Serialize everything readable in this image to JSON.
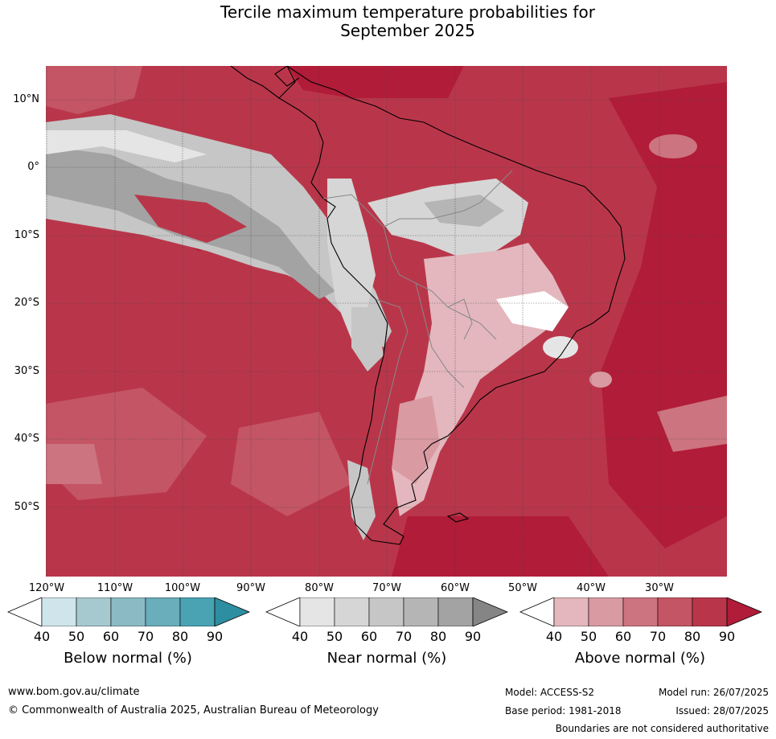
{
  "title_line1": "Tercile maximum temperature probabilities for",
  "title_line2": "September 2025",
  "lat_labels": [
    "10°N",
    "0°",
    "10°S",
    "20°S",
    "30°S",
    "40°S",
    "50°S"
  ],
  "lon_labels": [
    "120°W",
    "110°W",
    "100°W",
    "90°W",
    "80°W",
    "70°W",
    "60°W",
    "50°W",
    "40°W",
    "30°W"
  ],
  "colorbars": [
    {
      "title": "Below normal (%)",
      "ticks": [
        "40",
        "50",
        "60",
        "70",
        "80",
        "90"
      ],
      "colors": [
        "#ffffff",
        "#cfe5eb",
        "#a6c9d0",
        "#8bbac4",
        "#6aadbb",
        "#49a3b3",
        "#2e8ea1"
      ]
    },
    {
      "title": "Near normal (%)",
      "ticks": [
        "40",
        "50",
        "60",
        "70",
        "80",
        "90"
      ],
      "colors": [
        "#ffffff",
        "#e5e5e5",
        "#d6d6d6",
        "#c6c6c6",
        "#b5b5b5",
        "#a3a3a3",
        "#858585"
      ]
    },
    {
      "title": "Above normal (%)",
      "ticks": [
        "40",
        "50",
        "60",
        "70",
        "80",
        "90"
      ],
      "colors": [
        "#ffffff",
        "#e3b7bd",
        "#d99aa2",
        "#cc7480",
        "#c45564",
        "#b9364a",
        "#b11c38"
      ]
    }
  ],
  "footer": {
    "website": "www.bom.gov.au/climate",
    "copyright": "© Commonwealth of Australia 2025, Australian Bureau of Meteorology",
    "model": "Model: ACCESS-S2",
    "model_run": "Model run: 26/07/2025",
    "base_period": "Base period: 1981-2018",
    "issued": "Issued: 28/07/2025",
    "disclaimer": "Boundaries are not considered authoritative"
  }
}
